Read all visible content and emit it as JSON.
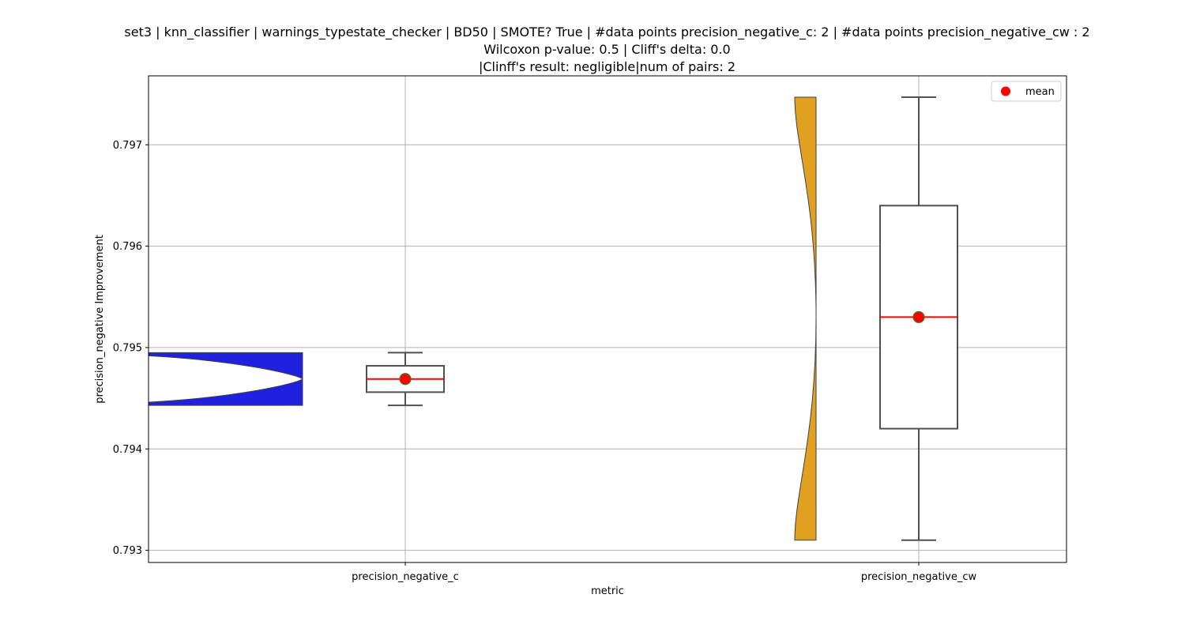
{
  "chart_data": {
    "type": "violin-box",
    "title_lines": [
      "set3 | knn_classifier | warnings_typestate_checker | BD50 | SMOTE? True | #data points precision_negative_c: 2 | #data points precision_negative_cw : 2",
      "Wilcoxon p-value: 0.5 | Cliff's delta: 0.0",
      "|Clinff's result: negligible|num of pairs: 2"
    ],
    "xlabel": "metric",
    "ylabel": "precision_negative Improvement",
    "ylim": [
      0.79288,
      0.79768
    ],
    "yticks": [
      "0.793",
      "0.794",
      "0.795",
      "0.796",
      "0.797"
    ],
    "ytick_values": [
      0.793,
      0.794,
      0.795,
      0.796,
      0.797
    ],
    "categories": [
      "precision_negative_c",
      "precision_negative_cw"
    ],
    "grid": true,
    "legend": {
      "position": "top-right",
      "label": "mean"
    },
    "colors": {
      "violin_c": "#2020e0",
      "violin_cw": "#e0a020",
      "median": "#ff0000",
      "mean_fill": "#ff0000",
      "mean_edge": "#2e7d32",
      "box_edge": "#505050"
    },
    "series": [
      {
        "category": "precision_negative_c",
        "min": 0.79443,
        "q1": 0.79456,
        "median": 0.79469,
        "q3": 0.79482,
        "max": 0.79495,
        "mean": 0.79469,
        "violin_range": [
          0.79443,
          0.79495
        ]
      },
      {
        "category": "precision_negative_cw",
        "min": 0.7931,
        "q1": 0.7942,
        "median": 0.7953,
        "q3": 0.7964,
        "max": 0.79747,
        "mean": 0.7953,
        "violin_range": [
          0.7931,
          0.79747
        ]
      }
    ]
  }
}
